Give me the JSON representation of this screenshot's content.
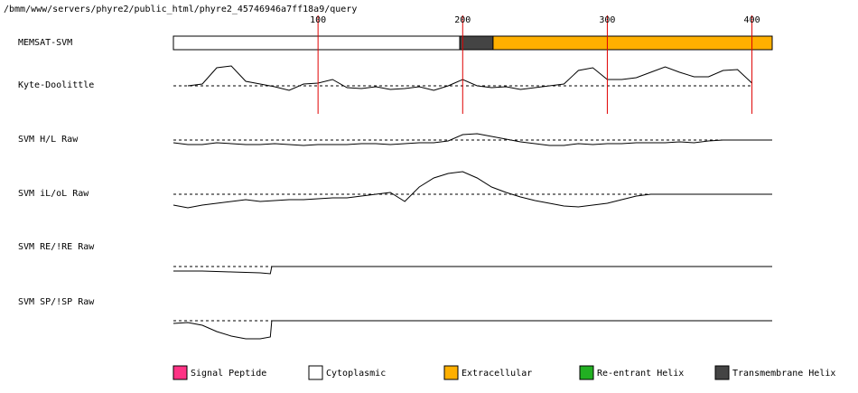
{
  "chart_data": {
    "type": "topology",
    "title": "/bmm/www/servers/phyre2/public_html/phyre2_45746946a7ff18a9/query",
    "xlim": [
      0,
      414
    ],
    "xticks": [
      100,
      200,
      300,
      400
    ],
    "topology": {
      "name": "MEMSAT-SVM",
      "segments": [
        {
          "start": 0,
          "end": 198,
          "color": "#ffffff"
        },
        {
          "start": 198,
          "end": 221,
          "color": "#444444"
        },
        {
          "start": 221,
          "end": 414,
          "color": "#ffb000"
        }
      ]
    },
    "tracks": [
      {
        "name": "Kyte-Doolittle",
        "ylim": [
          -30,
          30
        ],
        "x": [
          10,
          20,
          30,
          40,
          50,
          60,
          70,
          80,
          90,
          100,
          110,
          120,
          130,
          140,
          150,
          160,
          170,
          180,
          190,
          200,
          210,
          220,
          230,
          240,
          250,
          260,
          270,
          280,
          290,
          300,
          310,
          320,
          330,
          340,
          350,
          360,
          370,
          380,
          390,
          400
        ],
        "values": [
          0,
          2,
          20,
          22,
          5,
          2,
          -1,
          -5,
          2,
          3,
          7,
          -2,
          -3,
          -1,
          -4,
          -3,
          -1,
          -5,
          0,
          7,
          0,
          -2,
          -1,
          -4,
          -2,
          0,
          2,
          17,
          20,
          7,
          7,
          9,
          15,
          21,
          15,
          10,
          10,
          17,
          18,
          3
        ]
      },
      {
        "name": "SVM H/L Raw",
        "ylim": [
          -30,
          30
        ],
        "x": [
          0,
          10,
          20,
          30,
          40,
          50,
          60,
          70,
          80,
          90,
          100,
          110,
          120,
          130,
          140,
          150,
          160,
          170,
          180,
          190,
          200,
          210,
          220,
          230,
          240,
          250,
          260,
          270,
          280,
          290,
          300,
          310,
          320,
          330,
          340,
          350,
          360,
          370,
          380,
          414
        ],
        "values": [
          -3,
          -5,
          -5,
          -3,
          -4,
          -5,
          -5,
          -4,
          -5,
          -6,
          -5,
          -5,
          -5,
          -4,
          -4,
          -5,
          -4,
          -3,
          -3,
          -1,
          6,
          7,
          4,
          1,
          -2,
          -4,
          -6,
          -6,
          -4,
          -5,
          -4,
          -4,
          -3,
          -3,
          -3,
          -2,
          -3,
          -1,
          0,
          0
        ]
      },
      {
        "name": "SVM iL/oL Raw",
        "ylim": [
          -30,
          30
        ],
        "x": [
          0,
          10,
          20,
          30,
          40,
          50,
          60,
          70,
          80,
          90,
          100,
          110,
          120,
          130,
          140,
          150,
          160,
          170,
          180,
          190,
          200,
          210,
          220,
          230,
          240,
          250,
          260,
          270,
          280,
          290,
          300,
          310,
          320,
          330,
          414
        ],
        "values": [
          -12,
          -15,
          -12,
          -10,
          -8,
          -6,
          -8,
          -7,
          -6,
          -6,
          -5,
          -4,
          -4,
          -2,
          0,
          2,
          -8,
          8,
          18,
          23,
          25,
          18,
          8,
          2,
          -3,
          -7,
          -10,
          -13,
          -14,
          -12,
          -10,
          -6,
          -2,
          0,
          0
        ]
      },
      {
        "name": "SVM RE/!RE Raw",
        "ylim": [
          -30,
          30
        ],
        "x": [
          0,
          20,
          40,
          60,
          67,
          68,
          414
        ],
        "values": [
          -5,
          -5,
          -6,
          -7,
          -8,
          0,
          0
        ]
      },
      {
        "name": "SVM SP/!SP Raw",
        "ylim": [
          -30,
          30
        ],
        "x": [
          0,
          10,
          20,
          30,
          40,
          50,
          60,
          67,
          68,
          414
        ],
        "values": [
          -3,
          -2,
          -5,
          -12,
          -17,
          -20,
          -20,
          -18,
          0,
          0
        ]
      }
    ],
    "legend": [
      {
        "name": "Signal Peptide",
        "color": "#ff3385"
      },
      {
        "name": "Cytoplasmic",
        "color": "#ffffff"
      },
      {
        "name": "Extracellular",
        "color": "#ffb000"
      },
      {
        "name": "Re-entrant Helix",
        "color": "#22b022"
      },
      {
        "name": "Transmembrane Helix",
        "color": "#444444"
      }
    ]
  }
}
